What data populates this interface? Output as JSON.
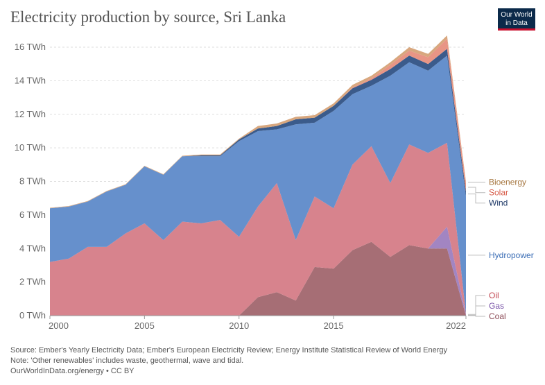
{
  "header": {
    "title": "Electricity production by source, Sri Lanka",
    "logo_line1": "Our World",
    "logo_line2": "in Data"
  },
  "footer": {
    "source": "Source: Ember's Yearly Electricity Data; Ember's European Electricity Review; Energy Institute Statistical Review of World Energy",
    "note": "Note: 'Other renewables' includes waste, geothermal, wave and tidal.",
    "credit": "OurWorldInData.org/energy • CC BY"
  },
  "chart_data": {
    "type": "area",
    "stacked": true,
    "title": "Electricity production by source, Sri Lanka",
    "unit": "TWh",
    "x": [
      2000,
      2001,
      2002,
      2003,
      2004,
      2005,
      2006,
      2007,
      2008,
      2009,
      2010,
      2011,
      2012,
      2013,
      2014,
      2015,
      2016,
      2017,
      2018,
      2019,
      2020,
      2021,
      2022
    ],
    "xlim": [
      2000,
      2022
    ],
    "xticks": [
      "2000",
      "2005",
      "2010",
      "2015",
      "2022"
    ],
    "ylim": [
      0,
      16
    ],
    "yticks": [
      "0 TWh",
      "2 TWh",
      "4 TWh",
      "6 TWh",
      "8 TWh",
      "10 TWh",
      "12 TWh",
      "14 TWh",
      "16 TWh"
    ],
    "grid": true,
    "legend_placement": "right",
    "series": [
      {
        "name": "Coal",
        "color": "#a66e75",
        "label_color": "#8b4a55",
        "values": [
          0,
          0,
          0,
          0,
          0,
          0,
          0,
          0,
          0,
          0,
          0,
          1.1,
          1.4,
          0.9,
          2.9,
          2.8,
          3.9,
          4.4,
          3.5,
          4.2,
          4.0,
          4.0,
          0
        ]
      },
      {
        "name": "Gas",
        "color": "#a285c2",
        "label_color": "#7a55a8",
        "values": [
          0,
          0,
          0,
          0,
          0,
          0,
          0,
          0,
          0,
          0,
          0,
          0,
          0,
          0,
          0,
          0,
          0,
          0,
          0,
          0,
          0,
          1.3,
          0.05
        ]
      },
      {
        "name": "Oil",
        "color": "#d7838d",
        "label_color": "#c2454f",
        "values": [
          3.2,
          3.4,
          4.1,
          4.1,
          4.9,
          5.5,
          4.5,
          5.6,
          5.5,
          5.7,
          4.7,
          5.4,
          6.5,
          3.6,
          4.2,
          3.6,
          5.1,
          5.7,
          4.4,
          6.0,
          5.7,
          5.0,
          0.05
        ]
      },
      {
        "name": "Hydropower",
        "color": "#6690cc",
        "label_color": "#3a6db5",
        "values": [
          3.2,
          3.1,
          2.7,
          3.3,
          2.9,
          3.4,
          3.9,
          3.9,
          4.0,
          3.8,
          5.7,
          4.5,
          3.2,
          6.9,
          4.4,
          5.8,
          4.2,
          3.6,
          6.4,
          4.9,
          4.9,
          5.2,
          7.0
        ]
      },
      {
        "name": "Wind",
        "color": "#3b5b8b",
        "label_color": "#1f3a68",
        "values": [
          0,
          0,
          0,
          0,
          0,
          0,
          0,
          0,
          0.05,
          0.05,
          0.1,
          0.15,
          0.2,
          0.3,
          0.3,
          0.3,
          0.35,
          0.35,
          0.4,
          0.4,
          0.4,
          0.4,
          0.3
        ]
      },
      {
        "name": "Solar",
        "color": "#e89585",
        "label_color": "#d75b48",
        "values": [
          0,
          0,
          0,
          0,
          0,
          0,
          0,
          0,
          0,
          0,
          0,
          0,
          0,
          0,
          0,
          0,
          0.05,
          0.1,
          0.25,
          0.3,
          0.4,
          0.6,
          0.5
        ]
      },
      {
        "name": "Bioenergy",
        "color": "#d8a77e",
        "label_color": "#a5753e",
        "values": [
          0.03,
          0.03,
          0.03,
          0.03,
          0.03,
          0.03,
          0.03,
          0.03,
          0.05,
          0.05,
          0.05,
          0.15,
          0.15,
          0.15,
          0.15,
          0.15,
          0.15,
          0.15,
          0.15,
          0.2,
          0.2,
          0.2,
          0.1
        ]
      }
    ]
  }
}
